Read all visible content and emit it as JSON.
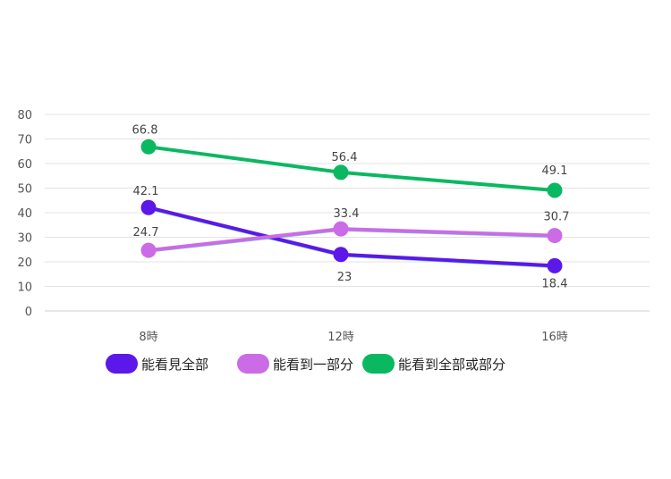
{
  "chart_data": {
    "type": "line",
    "categories": [
      "8時",
      "12時",
      "16時"
    ],
    "ylim": [
      0,
      80
    ],
    "yticks": [
      0,
      10,
      20,
      30,
      40,
      50,
      60,
      70,
      80
    ],
    "grid": true,
    "legend_position": "bottom",
    "series": [
      {
        "name": "能看見全部",
        "values": [
          42.1,
          23,
          18.4
        ],
        "color": "#5b18e8",
        "labels": [
          "42.1",
          "23",
          "18.4"
        ]
      },
      {
        "name": "能看到一部分",
        "values": [
          24.7,
          33.4,
          30.7
        ],
        "color": "#cc6be6",
        "labels": [
          "24.7",
          "33.4",
          "30.7"
        ]
      },
      {
        "name": "能看到全部或部分",
        "values": [
          66.8,
          56.4,
          49.1
        ],
        "color": "#0ab862",
        "labels": [
          "66.8",
          "56.4",
          "49.1"
        ]
      }
    ]
  }
}
